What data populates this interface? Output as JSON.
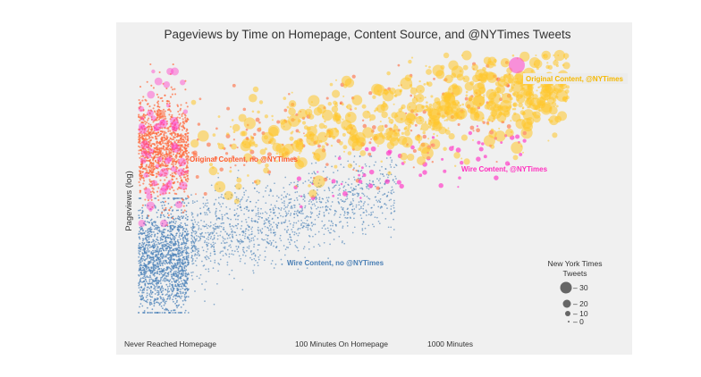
{
  "chart_data": {
    "type": "scatter",
    "title": "Pageviews by Time on Homepage, Content Source, and @NYTimes Tweets",
    "ylabel": "Pageviews (log)",
    "x_scale": "log",
    "y_scale": "log",
    "grid": false,
    "x_tick_labels": [
      "Never Reached Homepage",
      "100 Minutes On Homepage",
      "1000 Minutes"
    ],
    "series": [
      {
        "name": "Original Content, no @NYTimes",
        "color": "#ff6a3d"
      },
      {
        "name": "Original Content, @NYTimes",
        "color": "#ffc629"
      },
      {
        "name": "Wire Content, @NYTimes",
        "color": "#ff3fc7"
      },
      {
        "name": "Wire Content, no @NYTimes",
        "color": "#4f84b9"
      }
    ],
    "legend": {
      "title_lines": [
        "New York Times",
        "Tweets"
      ],
      "entries": [
        {
          "label": "– 30",
          "value": 30
        },
        {
          "label": "– 20",
          "value": 20
        },
        {
          "label": "– 10",
          "value": 10
        },
        {
          "label": "– 0",
          "value": 0
        }
      ],
      "placement": "bottom-right",
      "marker_color": "#666666"
    },
    "background_color": "#f0f0f0"
  }
}
